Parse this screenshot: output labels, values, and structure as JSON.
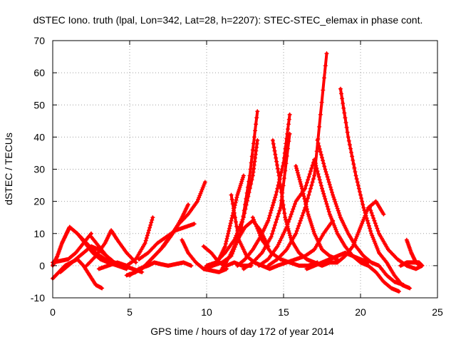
{
  "chart_data": {
    "type": "line",
    "title": "dSTEC Iono. truth (lpal, Lon=342, Lat=28, h=2207): STEC-STEC_elemax in phase cont.",
    "xlabel": "GPS time / hours of day 172 of year 2014",
    "ylabel": "dSTEC  / TECUs",
    "xlim": [
      0,
      25
    ],
    "ylim": [
      -10,
      70
    ],
    "xticks": [
      0,
      5,
      10,
      15,
      20,
      25
    ],
    "yticks": [
      -10,
      0,
      10,
      20,
      30,
      40,
      50,
      60,
      70
    ],
    "grid": true,
    "color": "#ff0000",
    "marker": "plus",
    "series": [
      {
        "x": [
          0.0,
          0.4,
          0.8,
          1.2,
          1.6,
          2.0,
          2.4,
          2.8,
          3.2
        ],
        "y": [
          -4,
          -2,
          0,
          1,
          2,
          0,
          -3,
          -6,
          -7
        ]
      },
      {
        "x": [
          0.0,
          0.5,
          1.0,
          1.5,
          2.0,
          2.5
        ],
        "y": [
          1,
          1.5,
          2,
          4,
          7,
          10
        ]
      },
      {
        "x": [
          0.0,
          0.3,
          0.6,
          0.9,
          1.1
        ],
        "y": [
          0,
          3,
          7,
          10,
          12
        ]
      },
      {
        "x": [
          1.1,
          1.6,
          2.1,
          2.6,
          3.1,
          3.6,
          4.2,
          4.8
        ],
        "y": [
          12,
          10,
          7,
          4,
          2,
          1,
          0,
          -1
        ]
      },
      {
        "x": [
          0.5,
          1.0,
          1.5,
          2.0,
          2.5,
          3.0,
          3.5,
          4.0,
          4.6
        ],
        "y": [
          -2,
          0,
          2,
          4,
          6,
          5,
          3,
          1,
          0
        ]
      },
      {
        "x": [
          1.6,
          2.2,
          2.8,
          3.4,
          4.0,
          4.6,
          5.2
        ],
        "y": [
          10,
          7,
          4,
          2,
          1,
          0,
          -1
        ]
      },
      {
        "x": [
          2.5,
          3.0,
          3.5,
          4.0,
          4.6,
          5.2,
          5.8
        ],
        "y": [
          9,
          6,
          3,
          1,
          0,
          -1,
          -2
        ]
      },
      {
        "x": [
          2.2,
          2.8,
          3.4,
          3.8,
          4.2,
          4.8,
          5.4
        ],
        "y": [
          0,
          3,
          7,
          11,
          8,
          4,
          1
        ]
      },
      {
        "x": [
          3.0,
          3.6,
          4.2,
          4.8,
          5.4,
          6.0,
          6.5
        ],
        "y": [
          -1,
          0,
          1,
          0,
          2,
          7,
          15
        ]
      },
      {
        "x": [
          5.0,
          5.6,
          6.2,
          6.6,
          7.0,
          7.5,
          8.0,
          8.5,
          9.0
        ],
        "y": [
          -3,
          -1,
          0,
          1,
          0.5,
          0,
          0.5,
          1,
          0
        ]
      },
      {
        "x": [
          4.8,
          5.4,
          6.0,
          6.6,
          7.2,
          7.8,
          8.4,
          8.8
        ],
        "y": [
          -3,
          -2,
          0,
          3,
          6,
          10,
          15,
          19
        ]
      },
      {
        "x": [
          5.8,
          6.4,
          7.0,
          7.6,
          8.2,
          8.8,
          9.4,
          9.9
        ],
        "y": [
          -1,
          2,
          5,
          9,
          13,
          16,
          20,
          26
        ]
      },
      {
        "x": [
          5.6,
          6.2,
          6.8,
          7.4,
          8.0,
          8.6,
          9.2
        ],
        "y": [
          2,
          4,
          7,
          9,
          11,
          12,
          13
        ]
      },
      {
        "x": [
          8.4,
          8.8,
          9.3,
          9.8,
          10.3,
          10.8,
          11.3
        ],
        "y": [
          8,
          4,
          1,
          -1,
          -1.5,
          -2,
          -1
        ]
      },
      {
        "x": [
          9.8,
          10.3,
          10.8,
          11.3,
          11.8,
          12.3,
          12.9
        ],
        "y": [
          6,
          4,
          1,
          0,
          1,
          0,
          0
        ]
      },
      {
        "x": [
          9.8,
          10.4,
          11.0,
          11.6,
          12.2,
          12.8,
          13.3
        ],
        "y": [
          -1,
          0,
          1,
          3,
          10,
          28,
          48
        ]
      },
      {
        "x": [
          10.0,
          10.6,
          11.2,
          11.8,
          12.4,
          13.0,
          13.3
        ],
        "y": [
          0,
          1,
          4,
          8,
          15,
          28,
          39
        ]
      },
      {
        "x": [
          10.4,
          10.8,
          11.2,
          11.6,
          12.0,
          12.4
        ],
        "y": [
          0,
          2,
          6,
          14,
          22,
          28
        ]
      },
      {
        "x": [
          11.0,
          11.5,
          12.0,
          12.5,
          13.0,
          13.5,
          14.0
        ],
        "y": [
          -1,
          3,
          8,
          12,
          14,
          11,
          6
        ]
      },
      {
        "x": [
          11.6,
          12.1,
          12.6,
          13.1,
          13.6,
          14.1,
          14.6
        ],
        "y": [
          22,
          8,
          3,
          1,
          0,
          -1,
          0
        ]
      },
      {
        "x": [
          12.0,
          12.5,
          13.0,
          13.5,
          14.0,
          14.5,
          15.0,
          15.4
        ],
        "y": [
          0,
          2,
          5,
          9,
          14,
          22,
          32,
          47
        ]
      },
      {
        "x": [
          12.4,
          13.0,
          13.6,
          14.2,
          14.8,
          15.4
        ],
        "y": [
          -1,
          1,
          4,
          9,
          18,
          41
        ]
      },
      {
        "x": [
          13.0,
          13.6,
          14.2,
          14.8,
          15.4,
          16.0,
          16.6,
          17.2
        ],
        "y": [
          15,
          8,
          4,
          2,
          1,
          0,
          0,
          1
        ]
      },
      {
        "x": [
          14.3,
          14.7,
          15.1,
          15.5,
          16.0,
          16.5,
          17.0
        ],
        "y": [
          39,
          28,
          15,
          8,
          4,
          2,
          1
        ]
      },
      {
        "x": [
          13.4,
          14.0,
          14.6,
          15.2,
          15.8,
          16.4,
          17.0
        ],
        "y": [
          0,
          2,
          6,
          12,
          20,
          24,
          33
        ]
      },
      {
        "x": [
          14.0,
          14.6,
          15.2,
          15.8,
          16.4,
          17.0,
          17.8
        ],
        "y": [
          0,
          2,
          5,
          10,
          18,
          28,
          66
        ]
      },
      {
        "x": [
          15.8,
          16.2,
          16.6,
          17.0,
          17.5,
          18.0,
          18.5
        ],
        "y": [
          31,
          24,
          16,
          10,
          5,
          3,
          2
        ]
      },
      {
        "x": [
          14.6,
          15.2,
          15.8,
          16.4,
          17.0,
          17.6,
          18.2
        ],
        "y": [
          0,
          1,
          2,
          3,
          5,
          10,
          14
        ]
      },
      {
        "x": [
          17.0,
          17.5,
          18.0,
          18.5,
          19.0,
          19.5,
          20.0,
          20.5,
          21.0,
          21.5,
          22.0,
          22.5
        ],
        "y": [
          33,
          24,
          16,
          10,
          6,
          3,
          1,
          0,
          -2,
          -5,
          -7,
          -8
        ]
      },
      {
        "x": [
          17.2,
          17.7,
          18.2,
          18.7,
          19.2,
          19.7,
          20.2,
          20.7,
          21.2,
          21.7,
          22.2,
          22.8
        ],
        "y": [
          39,
          30,
          22,
          15,
          10,
          6,
          3,
          1,
          0,
          -3,
          -5,
          -6
        ]
      },
      {
        "x": [
          18.7,
          19.2,
          19.7,
          20.2,
          20.7,
          21.2,
          21.7,
          22.2,
          22.7,
          23.2
        ],
        "y": [
          55,
          40,
          28,
          18,
          10,
          4,
          1,
          -3,
          -6,
          -7
        ]
      },
      {
        "x": [
          17.0,
          17.5,
          18.0,
          18.5,
          19.0,
          19.5,
          20.0,
          20.5,
          21.0,
          21.5
        ],
        "y": [
          1,
          0,
          1,
          1,
          3,
          6,
          12,
          18,
          20,
          16
        ]
      },
      {
        "x": [
          16.5,
          17.0,
          17.5,
          18.0,
          18.5,
          19.0,
          19.5,
          20.0,
          20.5
        ],
        "y": [
          -1,
          0,
          1,
          2,
          3,
          4,
          3,
          2,
          1
        ]
      },
      {
        "x": [
          20.6,
          21.2,
          21.8,
          22.4,
          23.0,
          23.6,
          24.0
        ],
        "y": [
          18,
          10,
          5,
          2,
          0,
          -1,
          0
        ]
      },
      {
        "x": [
          23.0,
          23.3,
          23.6,
          23.9
        ],
        "y": [
          8,
          4,
          1,
          0
        ]
      },
      {
        "x": [
          22.6,
          23.0,
          23.4,
          23.8,
          24.0
        ],
        "y": [
          0,
          1,
          1,
          1,
          0
        ]
      }
    ]
  }
}
